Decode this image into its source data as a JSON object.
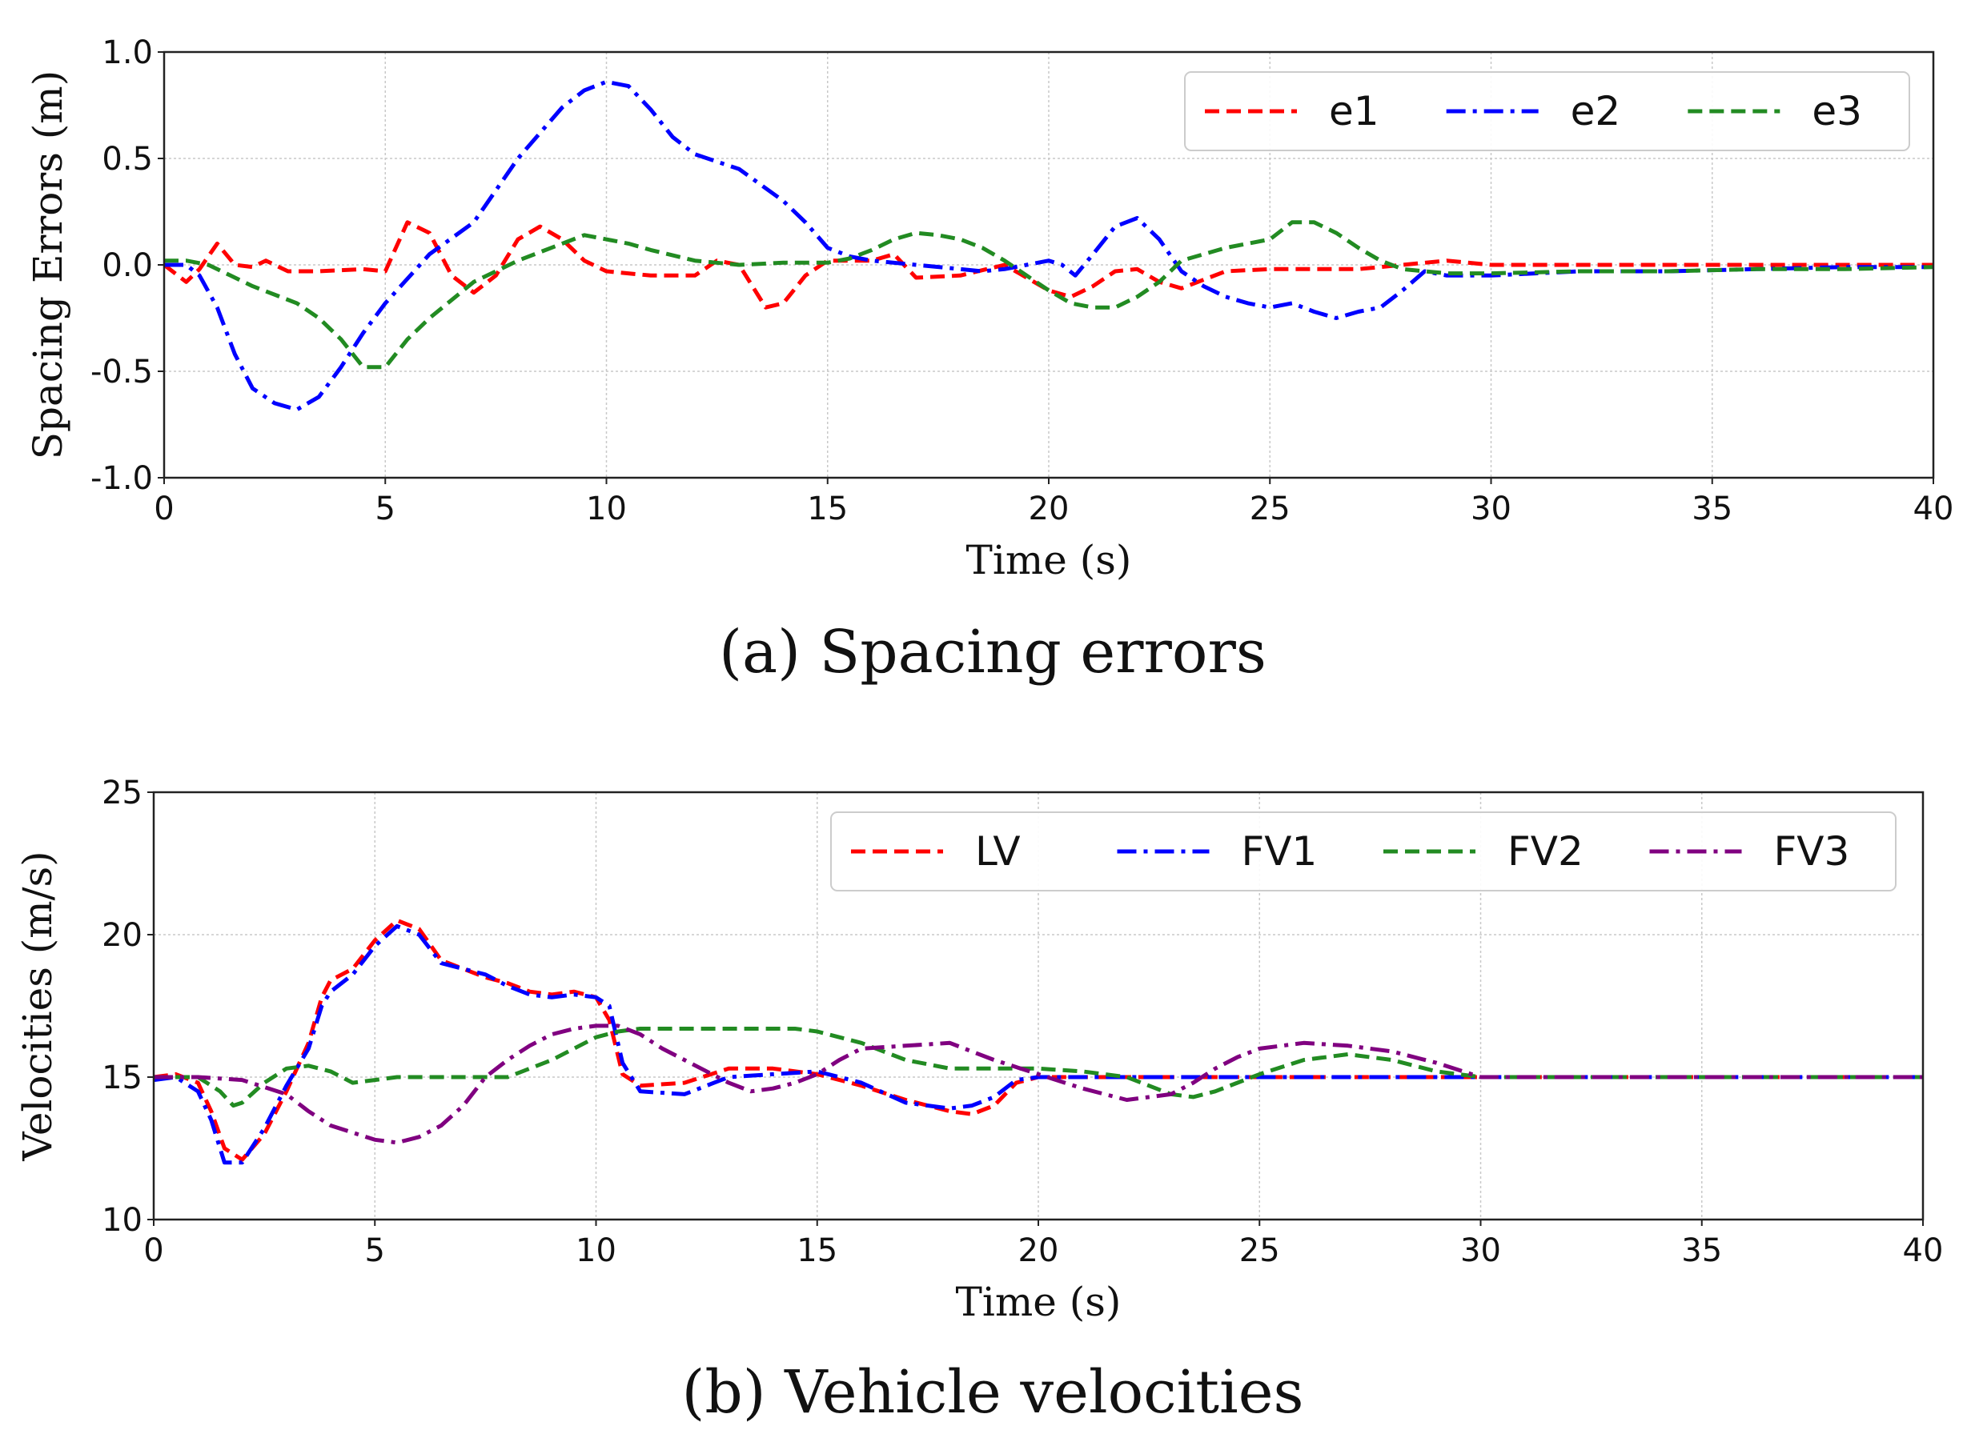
{
  "chart_data": [
    {
      "type": "line",
      "caption": "(a) Spacing errors",
      "xlabel": "Time (s)",
      "ylabel": "Spacing Errors (m)",
      "xlim": [
        0,
        40
      ],
      "ylim": [
        -1.0,
        1.0
      ],
      "grid": true,
      "legend_position": "top-right",
      "x_ticks": [
        "0",
        "5",
        "10",
        "15",
        "20",
        "25",
        "30",
        "35",
        "40"
      ],
      "y_ticks": [
        "-1.0",
        "-0.5",
        "0.0",
        "0.5",
        "1.0"
      ],
      "series": [
        {
          "name": "e1",
          "color": "#ff0000",
          "dash": "dashed",
          "x": [
            0,
            0.5,
            0.8,
            1.2,
            1.6,
            2.0,
            2.3,
            2.8,
            3.5,
            4.5,
            5.0,
            5.5,
            6.0,
            6.5,
            7.0,
            7.5,
            8.0,
            8.5,
            9.0,
            9.5,
            10,
            11,
            12,
            12.5,
            13,
            13.3,
            13.6,
            14,
            14.5,
            15,
            16,
            16.5,
            17,
            18,
            19,
            20,
            20.5,
            21,
            21.5,
            22,
            22.5,
            23,
            23.5,
            24,
            25,
            26,
            27,
            28,
            29,
            30,
            32,
            34,
            36,
            38,
            40
          ],
          "y": [
            0,
            -0.08,
            -0.02,
            0.1,
            0.0,
            -0.01,
            0.02,
            -0.03,
            -0.03,
            -0.02,
            -0.03,
            0.2,
            0.15,
            -0.05,
            -0.13,
            -0.05,
            0.12,
            0.18,
            0.12,
            0.02,
            -0.03,
            -0.05,
            -0.05,
            0.02,
            0.0,
            -0.1,
            -0.2,
            -0.18,
            -0.05,
            0.02,
            0.02,
            0.05,
            -0.06,
            -0.05,
            0.0,
            -0.12,
            -0.15,
            -0.1,
            -0.03,
            -0.02,
            -0.08,
            -0.11,
            -0.07,
            -0.03,
            -0.02,
            -0.02,
            -0.02,
            0.0,
            0.02,
            0.0,
            0.0,
            0.0,
            0.0,
            0.0,
            0.0
          ]
        },
        {
          "name": "e2",
          "color": "#0000ff",
          "dash": "dashdot",
          "x": [
            0,
            0.5,
            0.8,
            1.2,
            1.6,
            2.0,
            2.5,
            3.0,
            3.5,
            4.0,
            4.5,
            5.0,
            6.0,
            7.0,
            7.5,
            8.0,
            8.5,
            9.0,
            9.5,
            10,
            10.5,
            11,
            11.5,
            12,
            13,
            14,
            14.5,
            15,
            15.5,
            16,
            17,
            18,
            18.5,
            19,
            19.5,
            20,
            20.3,
            20.6,
            21,
            21.5,
            22,
            22.5,
            23,
            23.5,
            24,
            24.5,
            25,
            25.5,
            26,
            26.5,
            27,
            27.5,
            28,
            28.5,
            29,
            30,
            31,
            32,
            34,
            36,
            38,
            40
          ],
          "y": [
            0,
            0.0,
            -0.05,
            -0.2,
            -0.42,
            -0.58,
            -0.65,
            -0.68,
            -0.62,
            -0.48,
            -0.32,
            -0.18,
            0.05,
            0.2,
            0.35,
            0.5,
            0.62,
            0.74,
            0.82,
            0.86,
            0.84,
            0.73,
            0.6,
            0.52,
            0.45,
            0.3,
            0.2,
            0.08,
            0.04,
            0.02,
            0.0,
            -0.02,
            -0.03,
            -0.02,
            0.0,
            0.02,
            0.0,
            -0.05,
            0.05,
            0.18,
            0.22,
            0.12,
            -0.03,
            -0.1,
            -0.15,
            -0.18,
            -0.2,
            -0.18,
            -0.22,
            -0.25,
            -0.22,
            -0.2,
            -0.12,
            -0.03,
            -0.05,
            -0.05,
            -0.04,
            -0.03,
            -0.03,
            -0.02,
            -0.01,
            -0.01
          ]
        },
        {
          "name": "e3",
          "color": "#228b22",
          "dash": "dashed",
          "x": [
            0,
            0.5,
            1.0,
            1.5,
            2.0,
            3.0,
            3.5,
            4.0,
            4.5,
            5.0,
            5.5,
            6.0,
            7.0,
            8.0,
            9.0,
            9.5,
            10,
            10.5,
            11,
            12,
            13,
            14,
            15,
            15.5,
            16,
            16.5,
            17,
            17.5,
            18,
            18.5,
            19,
            19.5,
            20,
            20.5,
            21,
            21.5,
            22,
            22.5,
            23,
            24,
            25,
            25.5,
            26,
            26.5,
            27,
            27.5,
            28,
            28.5,
            29,
            30,
            32,
            34,
            36,
            38,
            40
          ],
          "y": [
            0.02,
            0.02,
            0.0,
            -0.05,
            -0.1,
            -0.18,
            -0.25,
            -0.35,
            -0.48,
            -0.48,
            -0.35,
            -0.25,
            -0.08,
            0.02,
            0.1,
            0.14,
            0.12,
            0.1,
            0.07,
            0.02,
            0.0,
            0.01,
            0.01,
            0.03,
            0.07,
            0.12,
            0.15,
            0.14,
            0.12,
            0.08,
            0.02,
            -0.05,
            -0.12,
            -0.18,
            -0.2,
            -0.2,
            -0.15,
            -0.08,
            0.02,
            0.08,
            0.12,
            0.2,
            0.2,
            0.15,
            0.08,
            0.02,
            -0.02,
            -0.03,
            -0.04,
            -0.04,
            -0.03,
            -0.03,
            -0.02,
            -0.02,
            -0.01
          ]
        }
      ]
    },
    {
      "type": "line",
      "caption": "(b) Vehicle velocities",
      "xlabel": "Time (s)",
      "ylabel": "Velocities (m/s)",
      "xlim": [
        0,
        40
      ],
      "ylim": [
        10,
        25
      ],
      "grid": true,
      "legend_position": "top-right",
      "x_ticks": [
        "0",
        "5",
        "10",
        "15",
        "20",
        "25",
        "30",
        "35",
        "40"
      ],
      "y_ticks": [
        "10",
        "15",
        "20",
        "25"
      ],
      "series": [
        {
          "name": "LV",
          "color": "#ff0000",
          "dash": "dashed",
          "x": [
            0,
            0.5,
            1.0,
            1.3,
            1.6,
            2.0,
            2.5,
            3.0,
            3.5,
            3.8,
            4.0,
            4.5,
            5.0,
            5.5,
            6.0,
            6.5,
            7.0,
            7.5,
            8.0,
            8.5,
            9.0,
            9.5,
            10,
            10.3,
            10.6,
            11,
            12,
            13,
            14,
            15,
            16,
            17,
            18,
            18.5,
            19,
            19.5,
            20,
            21,
            22,
            23,
            24,
            25,
            26,
            28,
            30,
            32,
            34,
            36,
            38,
            40
          ],
          "y": [
            15,
            15.1,
            14.8,
            13.8,
            12.5,
            12.1,
            13.0,
            14.5,
            16.2,
            17.8,
            18.4,
            18.8,
            19.8,
            20.5,
            20.2,
            19.1,
            18.8,
            18.5,
            18.3,
            18.0,
            17.9,
            18.0,
            17.8,
            17.0,
            15.1,
            14.7,
            14.8,
            15.3,
            15.3,
            15.1,
            14.7,
            14.2,
            13.8,
            13.7,
            14.0,
            14.8,
            15.0,
            15.0,
            15.0,
            15.0,
            15.0,
            15.0,
            15.0,
            15.0,
            15.0,
            15.0,
            15.0,
            15.0,
            15.0,
            15.0
          ]
        },
        {
          "name": "FV1",
          "color": "#0000ff",
          "dash": "dashdot",
          "x": [
            0,
            0.5,
            1.0,
            1.3,
            1.6,
            2.0,
            2.5,
            3.0,
            3.5,
            3.8,
            4.0,
            4.5,
            5.0,
            5.5,
            6.0,
            6.5,
            7.0,
            7.5,
            8.0,
            8.5,
            9.0,
            9.5,
            10,
            10.3,
            10.6,
            11,
            12,
            13,
            14,
            15,
            16,
            17,
            18,
            18.5,
            19,
            19.5,
            20,
            21,
            22,
            23,
            24,
            25,
            26,
            28,
            30,
            32,
            34,
            36,
            38,
            40
          ],
          "y": [
            14.9,
            15.0,
            14.5,
            13.5,
            12.0,
            12.0,
            13.2,
            14.7,
            16.0,
            17.5,
            18.0,
            18.6,
            19.6,
            20.3,
            20.0,
            19.0,
            18.8,
            18.6,
            18.2,
            17.9,
            17.8,
            17.9,
            17.8,
            17.5,
            15.5,
            14.5,
            14.4,
            15.0,
            15.1,
            15.2,
            14.8,
            14.1,
            13.9,
            14.0,
            14.3,
            14.9,
            15.0,
            15.0,
            15.0,
            15.0,
            15.0,
            15.0,
            15.0,
            15.0,
            15.0,
            15.0,
            15.0,
            15.0,
            15.0,
            15.0
          ]
        },
        {
          "name": "FV2",
          "color": "#228b22",
          "dash": "dashed",
          "x": [
            0,
            0.5,
            1.0,
            1.5,
            1.8,
            2.0,
            2.5,
            3.0,
            3.5,
            4.0,
            4.5,
            5.0,
            5.5,
            6.0,
            7.0,
            8.0,
            9.0,
            9.5,
            10,
            10.5,
            11,
            12,
            13,
            14,
            14.5,
            15,
            15.5,
            16,
            17,
            18,
            19,
            20,
            21,
            22,
            22.5,
            23,
            23.5,
            24,
            25,
            26,
            27,
            28,
            28.5,
            29,
            30,
            32,
            34,
            36,
            38,
            40
          ],
          "y": [
            15,
            15.0,
            15.0,
            14.5,
            14.0,
            14.1,
            14.8,
            15.3,
            15.4,
            15.2,
            14.8,
            14.9,
            15.0,
            15.0,
            15.0,
            15.0,
            15.6,
            16.0,
            16.4,
            16.6,
            16.7,
            16.7,
            16.7,
            16.7,
            16.7,
            16.6,
            16.4,
            16.2,
            15.6,
            15.3,
            15.3,
            15.3,
            15.2,
            15.0,
            14.7,
            14.4,
            14.3,
            14.5,
            15.1,
            15.6,
            15.8,
            15.6,
            15.4,
            15.2,
            15.0,
            15.0,
            15.0,
            15.0,
            15.0,
            15.0
          ]
        },
        {
          "name": "FV3",
          "color": "#800080",
          "dash": "dashdot",
          "x": [
            0,
            1,
            2,
            3,
            3.5,
            4,
            5,
            5.5,
            6,
            6.5,
            7,
            7.5,
            8,
            8.5,
            9,
            9.5,
            10,
            10.5,
            11,
            11.5,
            12,
            13,
            13.5,
            14,
            14.5,
            15,
            15.5,
            16,
            17,
            18,
            18.5,
            19,
            20,
            21,
            22,
            23,
            23.5,
            24,
            24.5,
            25,
            26,
            27,
            28,
            29,
            30,
            32,
            34,
            36,
            38,
            40
          ],
          "y": [
            15,
            15.0,
            14.9,
            14.4,
            13.8,
            13.3,
            12.8,
            12.7,
            12.9,
            13.3,
            14.0,
            15.0,
            15.6,
            16.1,
            16.5,
            16.7,
            16.8,
            16.8,
            16.5,
            16.0,
            15.6,
            14.8,
            14.5,
            14.6,
            14.8,
            15.1,
            15.6,
            16.0,
            16.1,
            16.2,
            15.9,
            15.6,
            15.1,
            14.6,
            14.2,
            14.4,
            14.8,
            15.3,
            15.7,
            16.0,
            16.2,
            16.1,
            15.9,
            15.5,
            15.0,
            15.0,
            15.0,
            15.0,
            15.0,
            15.0
          ]
        }
      ]
    }
  ]
}
